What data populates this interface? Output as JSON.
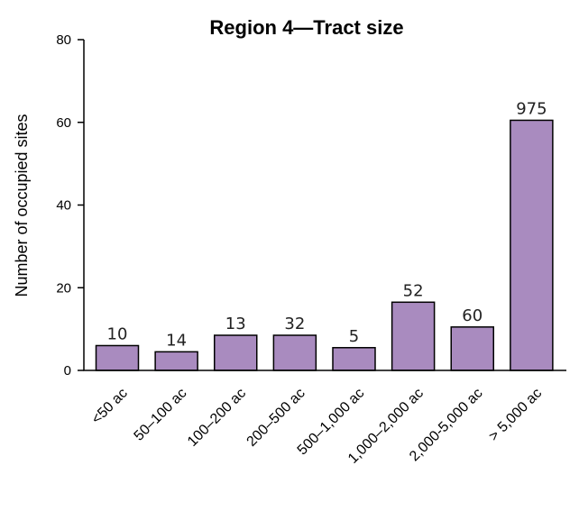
{
  "chart_data": {
    "type": "bar",
    "title": "Region 4—Tract size",
    "xlabel": "",
    "ylabel": "Number of occupied sites",
    "ylim": [
      0,
      80
    ],
    "yticks": [
      0,
      20,
      40,
      60,
      80
    ],
    "grid": false,
    "bar_color": "#a98bbf",
    "categories": [
      "<50 ac",
      "50–100 ac",
      "100–200 ac",
      "200–500 ac",
      "500–1,000 ac",
      "1,000–2,000 ac",
      "2,000-5,000 ac",
      "> 5,000 ac"
    ],
    "values": [
      6,
      4.5,
      8.5,
      8.5,
      5.5,
      16.5,
      10.5,
      60.5
    ],
    "data_labels": [
      "10",
      "14",
      "13",
      "32",
      "5",
      "52",
      "60",
      "975"
    ]
  }
}
